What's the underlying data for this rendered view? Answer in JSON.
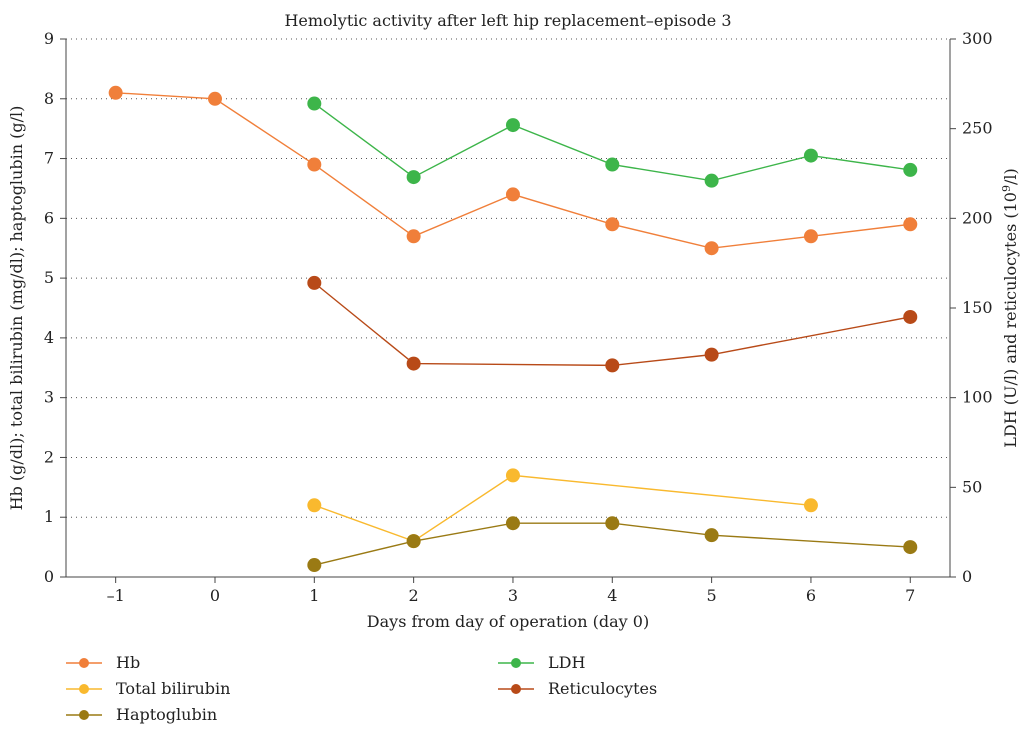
{
  "chart_data": {
    "type": "line",
    "title": "Hemolytic activity after left hip replacement–episode 3",
    "xlabel": "Days from day of operation (day 0)",
    "ylabel_left": "Hb (g/dl); total bilirubin (mg/dl); haptoglubin (g/l)",
    "ylabel_right_prefix": "LDH (U/l) and reticulocytes (10",
    "ylabel_right_sup": "9",
    "ylabel_right_suffix": "/l)",
    "x_ticks": [
      "–1",
      "0",
      "1",
      "2",
      "3",
      "4",
      "5",
      "6",
      "7"
    ],
    "x_values": [
      -1,
      0,
      1,
      2,
      3,
      4,
      5,
      6,
      7
    ],
    "xlim": [
      -1.5,
      7.4
    ],
    "ylim_left": [
      0,
      9
    ],
    "ylim_right": [
      0,
      300
    ],
    "y_ticks_left": [
      "0",
      "1",
      "2",
      "3",
      "4",
      "5",
      "6",
      "7",
      "8",
      "9"
    ],
    "y_ticks_right": [
      "0",
      "50",
      "100",
      "150",
      "200",
      "250",
      "300"
    ],
    "grid": true,
    "legend_position": "bottom",
    "series": [
      {
        "name": "Hb",
        "axis": "left",
        "color": "#f07f3a",
        "points": [
          [
            -1,
            8.1
          ],
          [
            0,
            8.0
          ],
          [
            1,
            6.9
          ],
          [
            2,
            5.7
          ],
          [
            3,
            6.4
          ],
          [
            4,
            5.9
          ],
          [
            5,
            5.5
          ],
          [
            6,
            5.7
          ],
          [
            7,
            5.9
          ]
        ]
      },
      {
        "name": "Total bilirubin",
        "axis": "left",
        "color": "#f9b92e",
        "points": [
          [
            1,
            1.2
          ],
          [
            2,
            0.6
          ],
          [
            3,
            1.7
          ],
          [
            6,
            1.2
          ]
        ]
      },
      {
        "name": "Haptoglubin",
        "axis": "left",
        "color": "#9a7a14",
        "points": [
          [
            1,
            0.2
          ],
          [
            2,
            0.6
          ],
          [
            3,
            0.9
          ],
          [
            4,
            0.9
          ],
          [
            5,
            0.7
          ],
          [
            7,
            0.5
          ]
        ]
      },
      {
        "name": "LDH",
        "axis": "right",
        "color": "#3db54a",
        "points": [
          [
            1,
            264
          ],
          [
            2,
            223
          ],
          [
            3,
            252
          ],
          [
            4,
            230
          ],
          [
            5,
            221
          ],
          [
            6,
            235
          ],
          [
            7,
            227
          ]
        ]
      },
      {
        "name": "Reticulocytes",
        "axis": "right",
        "color": "#b84a18",
        "points": [
          [
            1,
            164
          ],
          [
            2,
            119
          ],
          [
            4,
            118
          ],
          [
            5,
            124
          ],
          [
            7,
            145
          ]
        ]
      }
    ]
  }
}
